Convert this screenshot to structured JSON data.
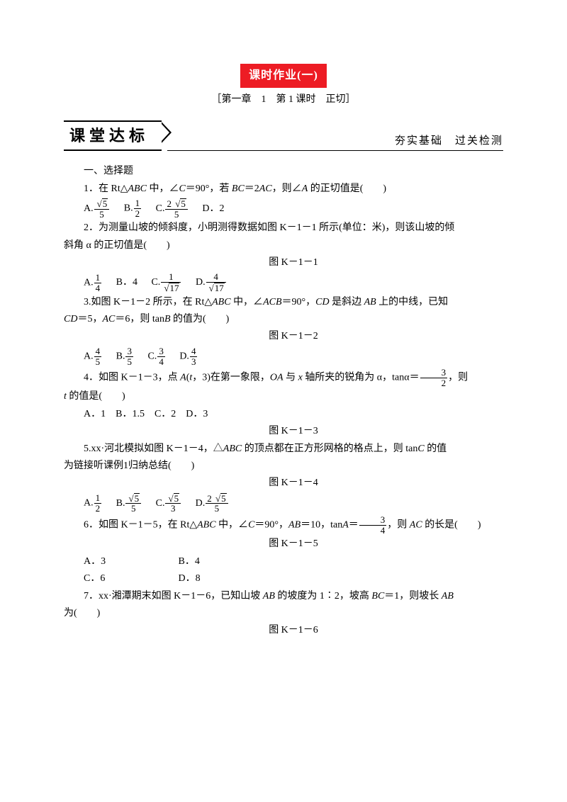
{
  "title": "课时作业(一)",
  "subtitle": "［第一章　1　第 1 课时　正切］",
  "section": {
    "left": "课堂达标",
    "right": "夯实基础　过关检测"
  },
  "heading": "一、选择题",
  "q1": {
    "text_a": "1．在 Rt△",
    "text_b": " 中，∠",
    "text_c": "＝90°，若 ",
    "text_d": "＝2",
    "text_e": "，则∠",
    "text_f": " 的正切值是(　　)",
    "ABC": "ABC",
    "C": "C",
    "BC": "BC",
    "AC": "AC",
    "A": "A",
    "opts_prefix": {
      "A": "A.",
      "B": "B.",
      "C": "C.",
      "D": "D．2"
    },
    "oA_num": "5",
    "oA_den": "5",
    "oB_num": "1",
    "oB_den": "2",
    "oC_num_lead": "2",
    "oC_num_rad": "5",
    "oC_den": "5"
  },
  "q2": {
    "line1": "2．为测量山坡的倾斜度，小明测得数据如图 K－1－1 所示(单位：米)，则该山坡的倾",
    "line2": "斜角 α 的正切值是(　　)",
    "fig": "图 K－1－1",
    "opts_prefix": {
      "A": "A.",
      "B": "B．4",
      "C": "C.",
      "D": "D."
    },
    "oA_num": "1",
    "oA_den": "4",
    "oC_num": "1",
    "oC_den_rad": "17",
    "oD_num": "4",
    "oD_den_rad": "17"
  },
  "q3": {
    "line1_a": "3.如图 K－1－2 所示，在 Rt△",
    "line1_b": " 中，∠",
    "line1_c": "＝90°，",
    "line1_d": " 是斜边 ",
    "line1_e": " 上的中线，已知",
    "ABC": "ABC",
    "ACB": "ACB",
    "CD": "CD",
    "AB": "AB",
    "line2_a": "＝5，",
    "line2_b": "＝6，则 tan",
    "line2_c": " 的值为(　　)",
    "AC": "AC",
    "B": "B",
    "fig": "图 K－1－2",
    "opts_prefix": {
      "A": "A.",
      "B": "B.",
      "C": "C.",
      "D": "D."
    },
    "oA_num": "4",
    "oA_den": "5",
    "oB_num": "3",
    "oB_den": "5",
    "oC_num": "3",
    "oC_den": "4",
    "oD_num": "4",
    "oD_den": "3"
  },
  "q4": {
    "line1_a": "4．如图 K－1－3，点 ",
    "line1_b": "(",
    "line1_c": "，3)在第一象限，",
    "line1_d": " 与 ",
    "line1_e": " 轴所夹的锐角为 α，tanα＝",
    "line1_f": "，则",
    "A": "A",
    "t": "t",
    "OA": "OA",
    "x": "x",
    "frac_num": "3",
    "frac_den": "2",
    "line2_a": " 的值是(　　)",
    "t2": "t",
    "opts": "A．1　B．1.5　C．2　D．3",
    "fig": "图 K－1－3"
  },
  "q5": {
    "line1_a": "5.xx·河北模拟如图 K－1－4，△",
    "line1_b": " 的顶点都在正方形网格的格点上，则 tan",
    "line1_c": " 的值",
    "ABC": "ABC",
    "C": "C",
    "line2": "为链接听课例1归纳总结(　　)",
    "fig": "图 K－1－4",
    "opts_prefix": {
      "A": "A.",
      "B": "B.",
      "C": "C.",
      "D": "D."
    },
    "oA_num": "1",
    "oA_den": "2",
    "oB_num_rad": "5",
    "oB_den": "5",
    "oC_num_rad": "5",
    "oC_den": "3",
    "oD_num_lead": "2",
    "oD_num_rad": "5",
    "oD_den": "5"
  },
  "q6": {
    "line_a": "6．如图 K－1－5，在 Rt△",
    "line_b": " 中，∠",
    "line_c": "＝90°，",
    "line_d": "＝10，tan",
    "line_e": "＝",
    "line_f": "，则 ",
    "line_g": " 的长是(　　)",
    "ABC": "ABC",
    "C": "C",
    "AB": "AB",
    "A": "A",
    "frac_num": "3",
    "frac_den": "4",
    "AC": "AC",
    "fig": "图 K－1－5",
    "oA": "A．3",
    "oB": "B．4",
    "oC": "C．6",
    "oD": "D．8"
  },
  "q7": {
    "line1_a": "7．xx·湘潭期末如图 K－1－6，已知山坡 ",
    "line1_b": " 的坡度为 1∶2，坡高 ",
    "line1_c": "＝1，则坡长 ",
    "AB": "AB",
    "BC": "BC",
    "AB2": "AB",
    "line2": "为(　　)",
    "fig": "图 K－1－6"
  }
}
